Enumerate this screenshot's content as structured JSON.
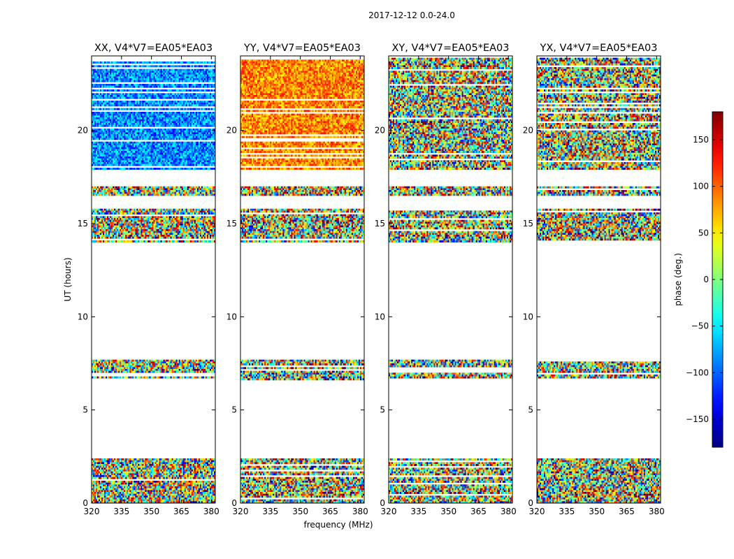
{
  "figure": {
    "suptitle": "2017-12-12 0.0-24.0",
    "xlabel": "frequency (MHz)",
    "ylabel": "UT (hours)"
  },
  "chart_data": {
    "type": "heatmap",
    "x": {
      "range": [
        320,
        382
      ],
      "ticks": [
        320,
        335,
        350,
        365,
        380
      ]
    },
    "y": {
      "range": [
        0,
        24
      ],
      "ticks": [
        0,
        5,
        10,
        15,
        20
      ]
    },
    "panels": [
      {
        "title": "XX, V4*V7=EA05*EA03",
        "polarization": "XX"
      },
      {
        "title": "YY, V4*V7=EA05*EA03",
        "polarization": "YY"
      },
      {
        "title": "XY, V4*V7=EA05*EA03",
        "polarization": "XY"
      },
      {
        "title": "YX, V4*V7=EA05*EA03",
        "polarization": "YX"
      }
    ],
    "data_bands_hours": [
      [
        0.0,
        2.4
      ],
      [
        6.6,
        7.7
      ],
      [
        14.0,
        15.8
      ],
      [
        16.5,
        17.0
      ],
      [
        17.9,
        23.9
      ]
    ],
    "colorbar": {
      "label": "phase (deg.)",
      "range": [
        -180,
        180
      ],
      "ticks": [
        -150,
        -100,
        -50,
        0,
        50,
        100,
        150
      ],
      "colormap": "jet"
    }
  }
}
